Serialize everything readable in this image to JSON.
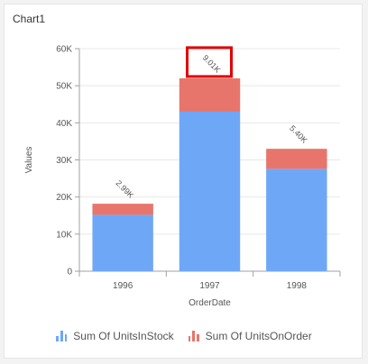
{
  "title": "Chart1",
  "colors": {
    "stock": "#6fa7f7",
    "order": "#e8756b",
    "highlight": "#e00000",
    "grid": "#e8e8e8",
    "axis": "#a0a0a0",
    "text": "#555555"
  },
  "chart_data": {
    "type": "bar",
    "stacked": true,
    "categories": [
      "1996",
      "1997",
      "1998"
    ],
    "series": [
      {
        "name": "Sum Of UnitsInStock",
        "values": [
          15200,
          43000,
          27600
        ],
        "icon": "bar-chart-icon"
      },
      {
        "name": "Sum Of UnitsOnOrder",
        "values": [
          2990,
          9010,
          5400
        ],
        "icon": "bar-chart-icon"
      }
    ],
    "data_labels": [
      "2.99K",
      "9.01K",
      "5.40K"
    ],
    "highlighted_label_index": 1,
    "xlabel": "OrderDate",
    "ylabel": "Values",
    "ylim": [
      0,
      60000
    ],
    "yticks": [
      0,
      10000,
      20000,
      30000,
      40000,
      50000,
      60000
    ],
    "ytick_labels": [
      "0",
      "10K",
      "20K",
      "30K",
      "40K",
      "50K",
      "60K"
    ],
    "grid": true,
    "legend_position": "bottom"
  }
}
